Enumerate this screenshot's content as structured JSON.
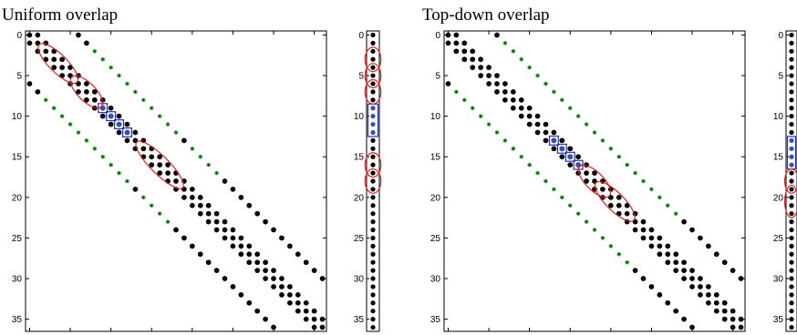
{
  "panels": [
    {
      "title": "Uniform overlap",
      "highlight_index": 9
    },
    {
      "title": "Top-down overlap",
      "highlight_index": 13
    }
  ],
  "chart_data": {
    "type": "scatter",
    "description_kind": "sparsity-pattern",
    "xlim": [
      0,
      37
    ],
    "ylim": [
      37,
      0
    ],
    "yticks": [
      0,
      5,
      10,
      15,
      20,
      25,
      30,
      35
    ],
    "colors": {
      "nonzero": "#000000",
      "overlap_inner": "#33aa33",
      "highlight_fill": "#3a4db5",
      "ellipse": "#dd2222",
      "box": "#2233aa"
    },
    "charts": [
      {
        "name": "Uniform overlap",
        "matrix_size": 37,
        "block_diagonal_offsets": [
          0,
          1
        ],
        "far_offsets": [
          6,
          12
        ],
        "overlap_rows_green": [
          2,
          3,
          4,
          5,
          6,
          7,
          8,
          9,
          10,
          11,
          12,
          14,
          15,
          16,
          17
        ],
        "blue_rows": [
          9,
          10,
          11,
          12
        ],
        "ellipse_ranges": [
          [
            2,
            5
          ],
          [
            6,
            8
          ],
          [
            14,
            18
          ]
        ],
        "vector_ellipses": [
          [
            2,
            4
          ],
          [
            4,
            6
          ],
          [
            6,
            8
          ],
          [
            15,
            17
          ],
          [
            17,
            19
          ]
        ],
        "vector_blue": [
          9,
          12
        ]
      },
      {
        "name": "Top-down overlap",
        "matrix_size": 37,
        "overlap_rows_green": [
          1,
          2,
          3,
          4,
          5,
          6,
          7,
          8,
          9,
          10,
          11,
          12,
          13,
          14,
          15,
          16,
          17,
          18,
          19,
          20,
          21,
          22
        ],
        "blue_rows": [
          13,
          14,
          15,
          16
        ],
        "ellipse_ranges": [
          [
            17,
            19
          ],
          [
            19,
            22
          ]
        ],
        "vector_ellipses": [
          [
            17,
            19
          ],
          [
            19,
            22
          ]
        ],
        "vector_blue": [
          13,
          16
        ]
      }
    ]
  }
}
